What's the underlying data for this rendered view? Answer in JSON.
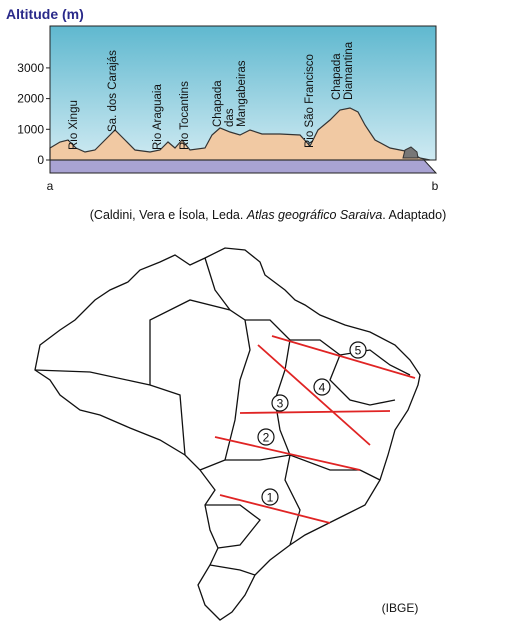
{
  "profile": {
    "title": "Altitude (m)",
    "yticks": [
      3000,
      2000,
      1000,
      0
    ],
    "ends": [
      "a",
      "b"
    ],
    "labels": [
      [
        "Rio Xingu"
      ],
      [
        "Sa. dos Carajás"
      ],
      [
        "Rio Araguaia"
      ],
      [
        "Rio Tocantins"
      ],
      [
        "Chapada",
        "das",
        "Mangabeiras"
      ],
      [
        "Rio São Francisco"
      ],
      [
        "Chapada",
        "Diamantina"
      ]
    ]
  },
  "citation": {
    "before": "(Caldini, Vera e Ísola, Leda. ",
    "italic": "Atlas geográfico Saraiva",
    "after": ". Adaptado)"
  },
  "map": {
    "sections": [
      "1",
      "2",
      "3",
      "4",
      "5"
    ],
    "source": "(IBGE)"
  }
}
